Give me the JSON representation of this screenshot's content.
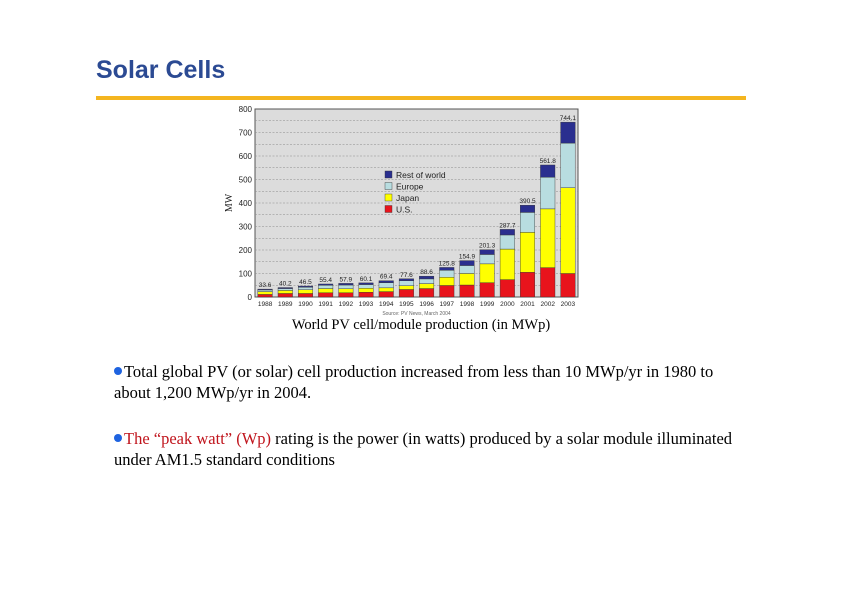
{
  "slide": {
    "title": "Solar Cells",
    "accent_color": "#f4b51f",
    "title_color": "#2b4a93"
  },
  "caption": "World PV cell/module production (in MWp)",
  "bullets": [
    {
      "text": "Total global PV (or solar) cell production increased from less than 10 MWp/yr in 1980 to about 1,200 MWp/yr in 2004."
    },
    {
      "highlight": "The “peak watt” (Wp)",
      "text": " rating is the power (in watts) produced by a solar module illuminated under AM1.5 standard conditions"
    }
  ],
  "chart_data": {
    "type": "bar",
    "stacked": true,
    "title": "",
    "xlabel": "",
    "ylabel": "MW",
    "ylim": [
      0,
      800
    ],
    "yticks": [
      0,
      100,
      200,
      300,
      400,
      500,
      600,
      700,
      800
    ],
    "grid": true,
    "legend_position": "upper-center-inside",
    "source_note": "Source: PV News, March 2004",
    "categories": [
      "1988",
      "1989",
      "1990",
      "1991",
      "1992",
      "1993",
      "1994",
      "1995",
      "1996",
      "1997",
      "1998",
      "1999",
      "2000",
      "2001",
      "2002",
      "2003"
    ],
    "totals": [
      33.6,
      40.2,
      46.5,
      55.4,
      57.9,
      60.1,
      69.4,
      77.6,
      88.6,
      125.8,
      154.9,
      201.3,
      287.7,
      390.5,
      561.8,
      744.1
    ],
    "series": [
      {
        "name": "U.S.",
        "color": "#e8141c",
        "values": [
          11,
          15,
          15,
          18,
          18,
          20,
          23,
          32,
          36,
          49,
          51,
          61,
          74,
          105,
          125,
          100
        ]
      },
      {
        "name": "Japan",
        "color": "#ffff00",
        "values": [
          12,
          13,
          16,
          18,
          17,
          17,
          16,
          16,
          21,
          35,
          49,
          80,
          130,
          170,
          250,
          365
        ]
      },
      {
        "name": "Europe",
        "color": "#b8dde0",
        "values": [
          7,
          8,
          11,
          14,
          16,
          16,
          22,
          21,
          20,
          30,
          34,
          40,
          60,
          85,
          135,
          190
        ]
      },
      {
        "name": "Rest of world",
        "color": "#2a2f8f",
        "values": [
          3.6,
          4.2,
          4.5,
          5.4,
          6.9,
          7.1,
          8.4,
          8.6,
          11.6,
          11.8,
          20.9,
          20.3,
          23.7,
          30.5,
          51.8,
          89.1
        ]
      }
    ],
    "legend": [
      "Rest of world",
      "Europe",
      "Japan",
      "U.S."
    ]
  }
}
